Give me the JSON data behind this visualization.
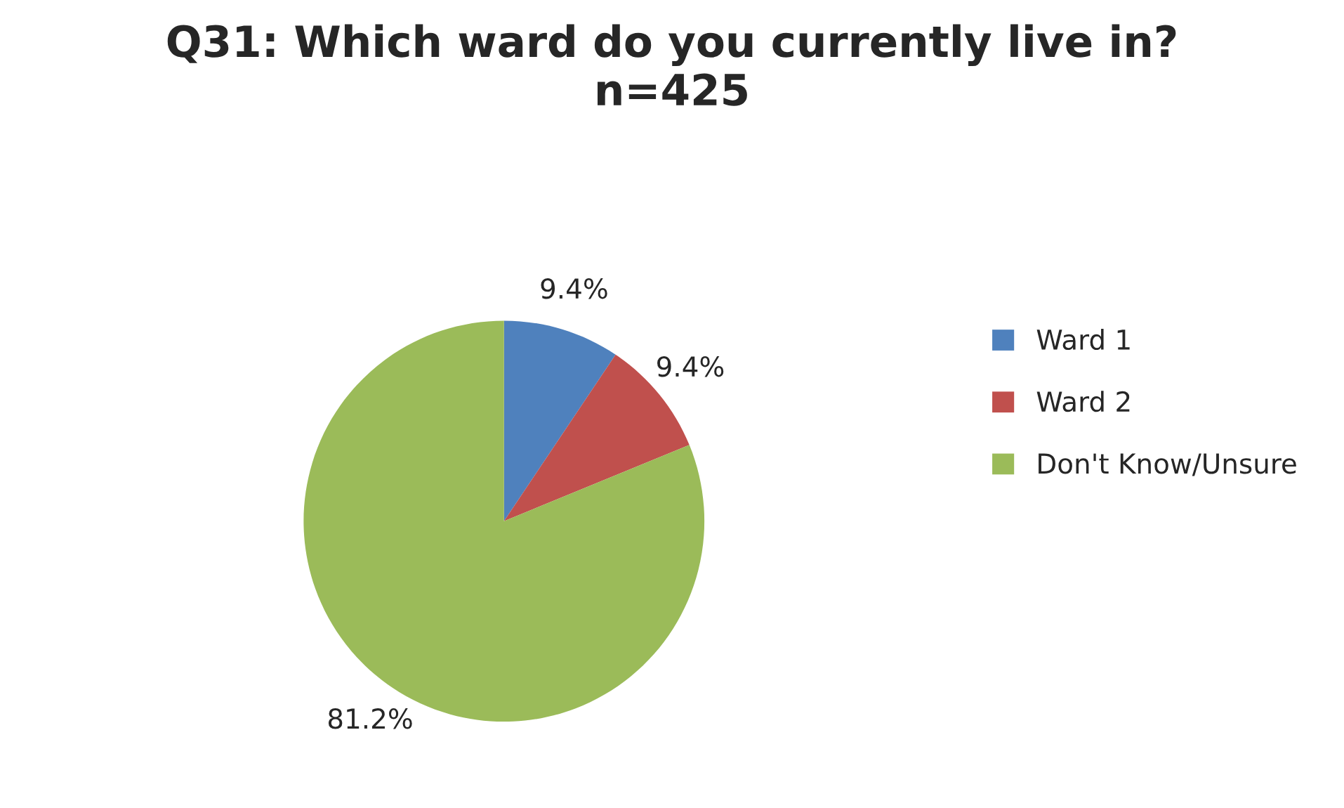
{
  "chart_data": {
    "type": "pie",
    "title": "Q31: Which ward do you currently live in?\nn=425",
    "categories": [
      "Ward 1",
      "Ward 2",
      "Don't Know/Unsure"
    ],
    "values": [
      9.4,
      9.4,
      81.2
    ],
    "colors": [
      "#4f81bd",
      "#c0504d",
      "#9bbb59"
    ],
    "value_labels": [
      "9.4%",
      "9.4%",
      "81.2%"
    ],
    "legend": "right"
  }
}
